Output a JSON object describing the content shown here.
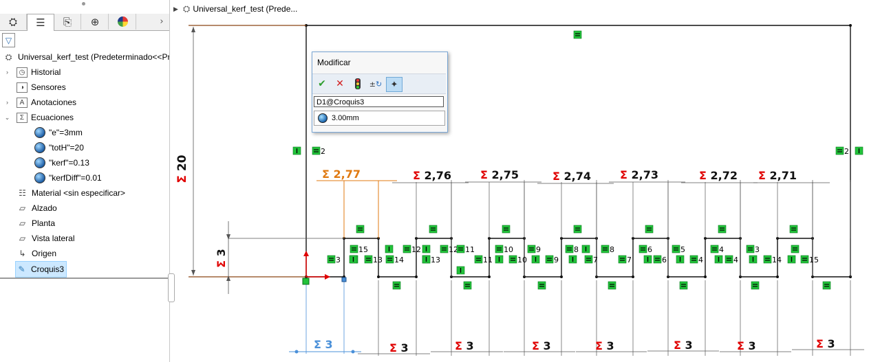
{
  "feature_manager": {
    "tabs": [
      {
        "icon": "part-icon"
      },
      {
        "icon": "property-manager-icon"
      },
      {
        "icon": "configuration-manager-icon"
      },
      {
        "icon": "dimxpert-icon"
      },
      {
        "icon": "display-manager-icon"
      }
    ],
    "root_label": "Universal_kerf_test  (Predeterminado<<Pr",
    "items": [
      {
        "label": "Historial",
        "icon": "history-icon"
      },
      {
        "label": "Sensores",
        "icon": "sensors-icon"
      },
      {
        "label": "Anotaciones",
        "icon": "annotations-icon"
      },
      {
        "label": "Ecuaciones",
        "icon": "equations-icon"
      },
      {
        "label": "\"e\"=3mm",
        "icon": "global-variable-icon"
      },
      {
        "label": "\"totH\"=20",
        "icon": "global-variable-icon"
      },
      {
        "label": "\"kerf\"=0.13",
        "icon": "global-variable-icon"
      },
      {
        "label": "\"kerfDiff\"=0.01",
        "icon": "global-variable-icon"
      },
      {
        "label": "Material <sin especificar>",
        "icon": "material-icon"
      },
      {
        "label": "Alzado",
        "icon": "plane-icon"
      },
      {
        "label": "Planta",
        "icon": "plane-icon"
      },
      {
        "label": "Vista lateral",
        "icon": "plane-icon"
      },
      {
        "label": "Origen",
        "icon": "origin-icon"
      },
      {
        "label": "Croquis3",
        "icon": "sketch-icon"
      }
    ]
  },
  "breadcrumb": {
    "label": "Universal_kerf_test  (Prede..."
  },
  "modify_dialog": {
    "title": "Modificar",
    "field_name": "D1@Croquis3",
    "value": "3.00mm",
    "buttons": [
      "ok-icon",
      "cancel-icon",
      "rebuild-icon",
      "reverse-dimension-icon",
      "mark-dimension-icon"
    ]
  },
  "sketch": {
    "height_dim": "20",
    "tab_height_dim": "3",
    "top_dims": [
      "2,77",
      "2,76",
      "2,75",
      "2,74",
      "2,73",
      "2,72",
      "2,71"
    ],
    "bottom_dims": [
      "3",
      "3",
      "3",
      "3",
      "3",
      "3",
      "3",
      "3"
    ],
    "relation_labels": [
      "2",
      "2",
      "15",
      "12",
      "12",
      "11",
      "10",
      "9",
      "8",
      "8",
      "7",
      "6",
      "6",
      "5",
      "5",
      "4",
      "4",
      "3",
      "3",
      "3",
      "13",
      "14",
      "13",
      "11",
      "10",
      "9",
      "7",
      "14",
      "15"
    ],
    "colors": {
      "dim_red": "#e00000",
      "dim_orange": "#e07a12",
      "sketch_black": "#111111",
      "relation_green": "#22c23a",
      "selected_blue": "#4a90d9",
      "brown_line": "#8b4513"
    }
  }
}
